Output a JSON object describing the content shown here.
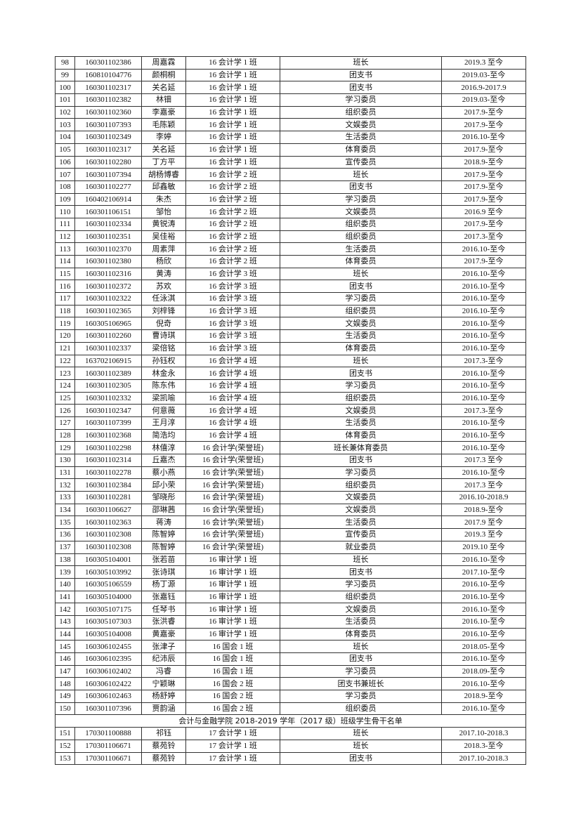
{
  "rows_2016": [
    [
      "98",
      "160301102386",
      "周嘉霖",
      "16 会计学 1 班",
      "班长",
      "2019.3 至今"
    ],
    [
      "99",
      "160810104776",
      "颜桐桐",
      "16 会计学 1 班",
      "团支书",
      "2019.03-至今"
    ],
    [
      "100",
      "160301102317",
      "关名延",
      "16 会计学 1 班",
      "团支书",
      "2016.9-2017.9"
    ],
    [
      "101",
      "160301102382",
      "林钿",
      "16 会计学 1 班",
      "学习委员",
      "2019.03-至今"
    ],
    [
      "102",
      "160301102360",
      "李嘉豪",
      "16 会计学 1 班",
      "组织委员",
      "2017.9-至今"
    ],
    [
      "103",
      "160301107393",
      "毛陈颖",
      "16 会计学 1 班",
      "文娱委员",
      "2017.9-至今"
    ],
    [
      "104",
      "160301102349",
      "李婷",
      "16 会计学 1 班",
      "生活委员",
      "2016.10-至今"
    ],
    [
      "105",
      "160301102317",
      "关名延",
      "16 会计学 1 班",
      "体育委员",
      "2017.9-至今"
    ],
    [
      "106",
      "160301102280",
      "丁方平",
      "16 会计学 1 班",
      "宣传委员",
      "2018.9-至今"
    ],
    [
      "107",
      "160301107394",
      "胡杨博睿",
      "16 会计学 2 班",
      "班长",
      "2017.9-至今"
    ],
    [
      "108",
      "160301102277",
      "邱鑫敏",
      "16 会计学 2 班",
      "团支书",
      "2017.9-至今"
    ],
    [
      "109",
      "160402106914",
      "朱杰",
      "16 会计学 2 班",
      "学习委员",
      "2017.9-至今"
    ],
    [
      "110",
      "160301106151",
      "邹怡",
      "16 会计学 2 班",
      "文娱委员",
      "2016.9 至今"
    ],
    [
      "111",
      "160301102334",
      "黄锐涛",
      "16 会计学 2 班",
      "组织委员",
      "2017.9-至今"
    ],
    [
      "112",
      "160301102351",
      "吴佳裕",
      "16 会计学 2 班",
      "组织委员",
      "2017.3-至今"
    ],
    [
      "113",
      "160301102370",
      "周素萍",
      "16 会计学 2 班",
      "生活委员",
      "2016.10-至今"
    ],
    [
      "114",
      "160301102380",
      "杨欣",
      "16 会计学 2 班",
      "体育委员",
      "2017.9-至今"
    ],
    [
      "115",
      "160301102316",
      "黄涛",
      "16 会计学 3 班",
      "班长",
      "2016.10-至今"
    ],
    [
      "116",
      "160301102372",
      "苏欢",
      "16 会计学 3 班",
      "团支书",
      "2016.10-至今"
    ],
    [
      "117",
      "160301102322",
      "任泳淇",
      "16 会计学 3 班",
      "学习委员",
      "2016.10-至今"
    ],
    [
      "118",
      "160301102365",
      "刘梓锋",
      "16 会计学 3 班",
      "组织委员",
      "2016.10-至今"
    ],
    [
      "119",
      "160305106965",
      "倪奇",
      "16 会计学 3 班",
      "文娱委员",
      "2016.10-至今"
    ],
    [
      "120",
      "160301102260",
      "曹诗琪",
      "16 会计学 3 班",
      "生活委员",
      "2016.10-至今"
    ],
    [
      "121",
      "160301102337",
      "梁倍铭",
      "16 会计学 3 班",
      "体育委员",
      "2016.10-至今"
    ],
    [
      "122",
      "163702106915",
      "孙钰权",
      "16 会计学 4 班",
      "班长",
      "2017.3-至今"
    ],
    [
      "123",
      "160301102389",
      "林金永",
      "16 会计学 4 班",
      "团支书",
      "2016.10-至今"
    ],
    [
      "124",
      "160301102305",
      "陈东伟",
      "16 会计学 4 班",
      "学习委员",
      "2016.10-至今"
    ],
    [
      "125",
      "160301102332",
      "梁凯喻",
      "16 会计学 4 班",
      "组织委员",
      "2016.10-至今"
    ],
    [
      "126",
      "160301102347",
      "何意薇",
      "16 会计学 4 班",
      "文娱委员",
      "2017.3-至今"
    ],
    [
      "127",
      "160301107399",
      "王月淳",
      "16 会计学 4 班",
      "生活委员",
      "2016.10-至今"
    ],
    [
      "128",
      "160301102368",
      "简浩均",
      "16 会计学 4 班",
      "体育委员",
      "2016.10-至今"
    ],
    [
      "129",
      "160301102298",
      "林僖淳",
      "16 会计学(荣誉班)",
      "班长兼体育委员",
      "2016.10-至今"
    ],
    [
      "130",
      "160301102314",
      "丘嘉杰",
      "16 会计学(荣誉班)",
      "团支书",
      "2017.3 至今"
    ],
    [
      "131",
      "160301102278",
      "蔡小燕",
      "16 会计学(荣誉班)",
      "学习委员",
      "2016.10-至今"
    ],
    [
      "132",
      "160301102384",
      "邱小荣",
      "16 会计学(荣誉班)",
      "组织委员",
      "2017.3 至今"
    ],
    [
      "133",
      "160301102281",
      "邹晓彤",
      "16 会计学(荣誉班)",
      "文娱委员",
      "2016.10-2018.9"
    ],
    [
      "134",
      "160301106627",
      "邵琳茜",
      "16 会计学(荣誉班)",
      "文娱委员",
      "2018.9-至今"
    ],
    [
      "135",
      "160301102363",
      "蒋涛",
      "16 会计学(荣誉班)",
      "生活委员",
      "2017.9 至今"
    ],
    [
      "136",
      "160301102308",
      "陈智婷",
      "16 会计学(荣誉班)",
      "宣传委员",
      "2019.3 至今"
    ],
    [
      "137",
      "160301102308",
      "陈智婷",
      "16 会计学(荣誉班)",
      "就业委员",
      "2019.10 至今"
    ],
    [
      "138",
      "160305104001",
      "张若苗",
      "16 审计学 1 班",
      "班长",
      "2016.10-至今"
    ],
    [
      "139",
      "160305103992",
      "张诗琪",
      "16 审计学 1 班",
      "团支书",
      "2017.10-至今"
    ],
    [
      "140",
      "160305106559",
      "杨丁源",
      "16 审计学 1 班",
      "学习委员",
      "2016.10-至今"
    ],
    [
      "141",
      "160305104000",
      "张嘉钰",
      "16 审计学 1 班",
      "组织委员",
      "2016.10-至今"
    ],
    [
      "142",
      "160305107175",
      "任琴书",
      "16 审计学 1 班",
      "文娱委员",
      "2016.10-至今"
    ],
    [
      "143",
      "160305107303",
      "张洪睿",
      "16 审计学 1 班",
      "生活委员",
      "2016.10-至今"
    ],
    [
      "144",
      "160305104008",
      "黄嘉豪",
      "16 审计学 1 班",
      "体育委员",
      "2016.10-至今"
    ],
    [
      "145",
      "160306102455",
      "张津子",
      "16 国会 1 班",
      "班长",
      "2018.05-至今"
    ],
    [
      "146",
      "160306102395",
      "纪沛辰",
      "16 国会 1 班",
      "团支书",
      "2016.10-至今"
    ],
    [
      "147",
      "160306102402",
      "冯睿",
      "16 国会 1 班",
      "学习委员",
      "2018.09-至今"
    ],
    [
      "148",
      "160306102422",
      "宁颖琳",
      "16 国会 2 班",
      "团支书兼班长",
      "2016.10-至今"
    ],
    [
      "149",
      "160306102463",
      "杨舒婷",
      "16 国会 2 班",
      "学习委员",
      "2018.9-至今"
    ],
    [
      "150",
      "160301107396",
      "贾韵涵",
      "16 国会 2 班",
      "组织委员",
      "2016.10-至今"
    ]
  ],
  "section_title_2017": "会计与金融学院 2018-2019 学年（2017 级）班级学生骨干名单",
  "rows_2017": [
    [
      "151",
      "170301100888",
      "祁钰",
      "17 会计学 1 班",
      "班长",
      "2017.10-2018.3"
    ],
    [
      "152",
      "170301106671",
      "蔡苑铃",
      "17 会计学 1 班",
      "班长",
      "2018.3-至今"
    ],
    [
      "153",
      "170301106671",
      "蔡苑铃",
      "17 会计学 1 班",
      "团支书",
      "2017.10-2018.3"
    ]
  ]
}
